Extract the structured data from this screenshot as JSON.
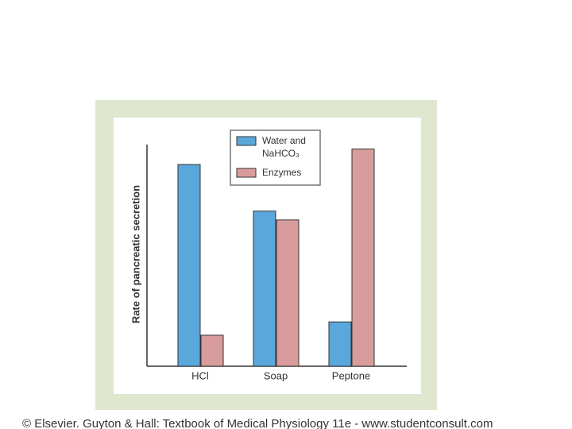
{
  "chart_data": {
    "type": "bar",
    "y_label": "Rate of pancreatic secretion",
    "categories": [
      "HCl",
      "Soap",
      "Peptone"
    ],
    "series": [
      {
        "name": "Water and NaHCO₃",
        "color": "#5aa7dc",
        "values": [
          91,
          70,
          20
        ]
      },
      {
        "name": "Enzymes",
        "color": "#d99c9c",
        "values": [
          14,
          66,
          98
        ]
      }
    ],
    "ylim": [
      0,
      100
    ],
    "legend": "top",
    "source": "© Elsevier. Guyton & Hall: Textbook of Medical Physiology 11e - www.studentconsult.com"
  }
}
